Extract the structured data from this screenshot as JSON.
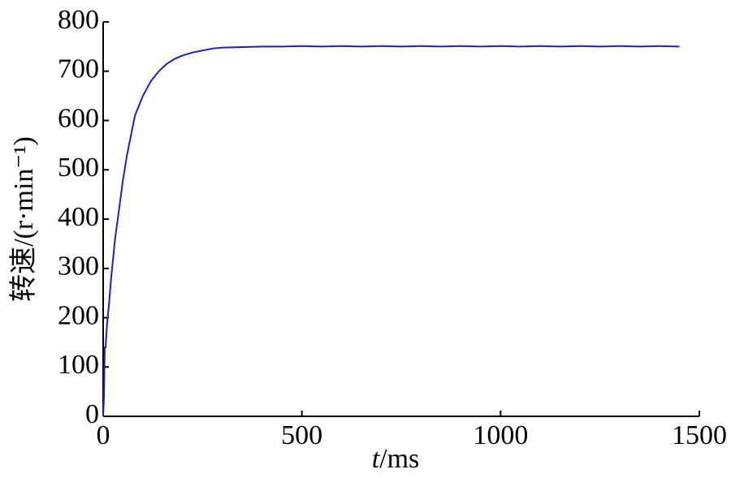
{
  "chart_data": {
    "type": "line",
    "xlabel": {
      "symbol": "t",
      "unit": "/ms"
    },
    "ylabel": "转速/(r·min⁻¹)",
    "x": [
      0,
      2,
      4,
      6,
      10,
      15,
      20,
      25,
      30,
      40,
      50,
      60,
      70,
      80,
      90,
      100,
      120,
      140,
      160,
      180,
      200,
      225,
      250,
      275,
      300,
      350,
      400,
      450,
      500,
      550,
      600,
      650,
      700,
      750,
      800,
      850,
      900,
      950,
      1000,
      1050,
      1100,
      1150,
      1200,
      1250,
      1300,
      1350,
      1400,
      1450
    ],
    "series": [
      {
        "name": "转速",
        "color": "#1f1fbf",
        "values": [
          0,
          40,
          140,
          140,
          190,
          230,
          280,
          320,
          360,
          420,
          480,
          530,
          570,
          610,
          630,
          650,
          680,
          700,
          715,
          725,
          732,
          738,
          742,
          746,
          748,
          749,
          750,
          750,
          751,
          750,
          751,
          750,
          751,
          750,
          751,
          750,
          751,
          750,
          751,
          750,
          751,
          750,
          751,
          750,
          751,
          750,
          751,
          750
        ]
      }
    ],
    "xlim": [
      0,
      1500
    ],
    "ylim": [
      0,
      800
    ],
    "xticks": [
      0,
      500,
      1000,
      1500
    ],
    "yticks": [
      0,
      100,
      200,
      300,
      400,
      500,
      600,
      700,
      800
    ]
  }
}
